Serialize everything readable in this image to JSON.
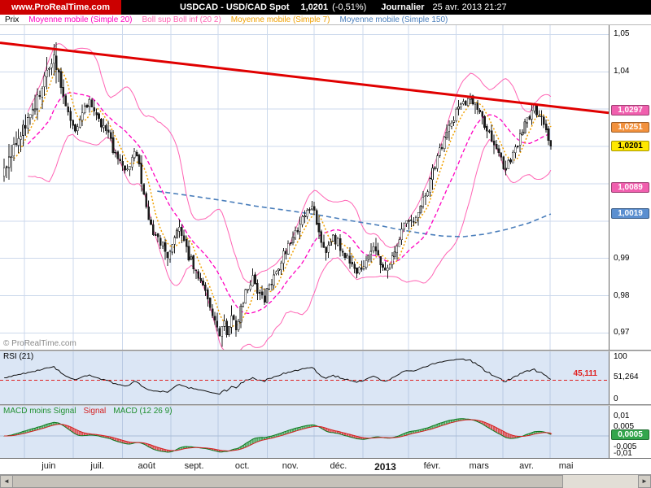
{
  "header": {
    "logo": "www.ProRealTime.com",
    "title": "USDCAD - USD/CAD Spot",
    "price": "1,0201",
    "change": "(-0,51%)",
    "timeframe": "Journalier",
    "datetime": "25 avr. 2013 21:27"
  },
  "legend": [
    {
      "label": "Prix",
      "color": "#000000"
    },
    {
      "label": "Moyenne mobile (Simple 20)",
      "color": "#ff00c0"
    },
    {
      "label": "Boll sup Boll inf (20 2)",
      "color": "#ff64b4"
    },
    {
      "label": "Moyenne mobile (Simple 7)",
      "color": "#f0a000"
    },
    {
      "label": "Moyenne mobile (Simple 150)",
      "color": "#4a7ebb"
    }
  ],
  "watermark": "© ProRealTime.com",
  "icons": {
    "scroll_left": "◄",
    "scroll_right": "►"
  },
  "price_axis": {
    "ticks": [
      {
        "label": "1,05",
        "v": 1.05
      },
      {
        "label": "1,04",
        "v": 1.04
      },
      {
        "label": "0,99",
        "v": 0.99
      },
      {
        "label": "0,98",
        "v": 0.98
      },
      {
        "label": "0,97",
        "v": 0.97
      }
    ],
    "boxes": [
      {
        "label": "1,0297",
        "v": 1.0297,
        "bg": "#f05fae",
        "fg": "#ffffff"
      },
      {
        "label": "1,0251",
        "v": 1.0251,
        "bg": "#f2913d",
        "fg": "#ffffff"
      },
      {
        "label": "1,0201",
        "v": 1.0201,
        "bg": "#ffe800",
        "fg": "#000000"
      },
      {
        "label": "1,0089",
        "v": 1.0089,
        "bg": "#f05fae",
        "fg": "#ffffff"
      },
      {
        "label": "1,0019",
        "v": 1.0019,
        "bg": "#5b8fd0",
        "fg": "#ffffff"
      }
    ]
  },
  "rsi_panel": {
    "label": "RSI (21)",
    "level": 45.111,
    "level_label": "45,111",
    "last": 51.264,
    "axis": [
      {
        "label": "100",
        "v": 100
      },
      {
        "label": "51,264",
        "v": 51.264
      },
      {
        "label": "0",
        "v": 0
      }
    ]
  },
  "macd_panel": {
    "legend": [
      {
        "label": "MACD moins Signal",
        "color": "#1f8f2f"
      },
      {
        "label": "Signal",
        "color": "#d42020"
      },
      {
        "label": "MACD (12 26 9)",
        "color": "#1f8f2f"
      }
    ],
    "axis": [
      {
        "label": "0,01",
        "v": 0.01
      },
      {
        "label": "0,005",
        "v": 0.005
      },
      {
        "label": "-0,005",
        "v": -0.005
      },
      {
        "label": "-0,01",
        "v": -0.01
      }
    ],
    "box": {
      "label": "0,0005",
      "v": 0.0005,
      "bg": "#33a64c",
      "fg": "#ffffff"
    }
  },
  "months": [
    {
      "label": "juin",
      "t": 0.08
    },
    {
      "label": "juil.",
      "t": 0.16
    },
    {
      "label": "août",
      "t": 0.241
    },
    {
      "label": "sept.",
      "t": 0.319
    },
    {
      "label": "oct.",
      "t": 0.398
    },
    {
      "label": "nov.",
      "t": 0.477
    },
    {
      "label": "déc.",
      "t": 0.556
    },
    {
      "label": "2013",
      "t": 0.633,
      "year": true
    },
    {
      "label": "févr.",
      "t": 0.71
    },
    {
      "label": "mars",
      "t": 0.787
    },
    {
      "label": "avr.",
      "t": 0.865
    },
    {
      "label": "mai",
      "t": 0.93
    }
  ],
  "chart_data": {
    "type": "candlestick",
    "symbol": "USDCAD",
    "period": "daily",
    "x_range": [
      "juin 2012",
      "mai 2013"
    ],
    "y_range": [
      0.9655,
      1.0525
    ],
    "candles": 232,
    "t_span": [
      0.007,
      0.905
    ],
    "last": 1.0201,
    "grid_prices": [
      0.97,
      0.98,
      0.99,
      1.0,
      1.01,
      1.02,
      1.03,
      1.04,
      1.05
    ],
    "grid_t": [
      0.04,
      0.12,
      0.201,
      0.281,
      0.358,
      0.439,
      0.516,
      0.596,
      0.671,
      0.749,
      0.826,
      0.904
    ],
    "close_anchors": [
      [
        0.0,
        1.014
      ],
      [
        0.018,
        1.02
      ],
      [
        0.04,
        1.026
      ],
      [
        0.062,
        1.033
      ],
      [
        0.08,
        1.0415
      ],
      [
        0.09,
        1.044
      ],
      [
        0.102,
        1.0375
      ],
      [
        0.115,
        1.03
      ],
      [
        0.128,
        1.0245
      ],
      [
        0.142,
        1.0275
      ],
      [
        0.155,
        1.033
      ],
      [
        0.168,
        1.0295
      ],
      [
        0.18,
        1.025
      ],
      [
        0.193,
        1.022
      ],
      [
        0.207,
        1.0165
      ],
      [
        0.22,
        1.013
      ],
      [
        0.231,
        1.0165
      ],
      [
        0.242,
        1.0185
      ],
      [
        0.252,
        1.01
      ],
      [
        0.263,
        1.0
      ],
      [
        0.274,
        0.996
      ],
      [
        0.287,
        0.9945
      ],
      [
        0.299,
        0.991
      ],
      [
        0.31,
        0.9955
      ],
      [
        0.321,
        0.9975
      ],
      [
        0.333,
        0.9925
      ],
      [
        0.345,
        0.988
      ],
      [
        0.357,
        0.9855
      ],
      [
        0.368,
        0.981
      ],
      [
        0.377,
        0.976
      ],
      [
        0.386,
        0.972
      ],
      [
        0.394,
        0.969
      ],
      [
        0.401,
        0.973
      ],
      [
        0.408,
        0.97
      ],
      [
        0.415,
        0.9745
      ],
      [
        0.424,
        0.971
      ],
      [
        0.433,
        0.976
      ],
      [
        0.444,
        0.982
      ],
      [
        0.454,
        0.9845
      ],
      [
        0.464,
        0.981
      ],
      [
        0.474,
        0.9785
      ],
      [
        0.484,
        0.982
      ],
      [
        0.495,
        0.986
      ],
      [
        0.507,
        0.9895
      ],
      [
        0.519,
        0.9935
      ],
      [
        0.531,
        0.996
      ],
      [
        0.543,
        1.0
      ],
      [
        0.552,
        1.003
      ],
      [
        0.561,
        1.004
      ],
      [
        0.571,
        1.0
      ],
      [
        0.581,
        0.995
      ],
      [
        0.591,
        0.992
      ],
      [
        0.601,
        0.996
      ],
      [
        0.611,
        0.994
      ],
      [
        0.622,
        0.991
      ],
      [
        0.633,
        0.988
      ],
      [
        0.644,
        0.9855
      ],
      [
        0.655,
        0.988
      ],
      [
        0.666,
        0.991
      ],
      [
        0.677,
        0.993
      ],
      [
        0.687,
        0.989
      ],
      [
        0.697,
        0.9865
      ],
      [
        0.707,
        0.9895
      ],
      [
        0.717,
        0.993
      ],
      [
        0.728,
        0.9975
      ],
      [
        0.738,
        1.0005
      ],
      [
        0.748,
        0.9985
      ],
      [
        0.758,
        1.002
      ],
      [
        0.768,
        1.006
      ],
      [
        0.778,
        1.0105
      ],
      [
        0.788,
        1.015
      ],
      [
        0.798,
        1.0195
      ],
      [
        0.808,
        1.023
      ],
      [
        0.818,
        1.026
      ],
      [
        0.828,
        1.0295
      ],
      [
        0.84,
        1.032
      ],
      [
        0.853,
        1.0325
      ],
      [
        0.865,
        1.03
      ],
      [
        0.877,
        1.026
      ],
      [
        0.888,
        1.0235
      ],
      [
        0.898,
        1.02
      ],
      [
        0.908,
        1.0165
      ],
      [
        0.918,
        1.014
      ],
      [
        0.928,
        1.0165
      ],
      [
        0.938,
        1.0195
      ],
      [
        0.948,
        1.024
      ],
      [
        0.958,
        1.028
      ],
      [
        0.97,
        1.03
      ],
      [
        0.98,
        1.028
      ],
      [
        0.99,
        1.024
      ],
      [
        1.0,
        1.0201
      ]
    ],
    "mm150_anchors": [
      [
        0.28,
        1.008
      ],
      [
        0.34,
        1.0068
      ],
      [
        0.4,
        1.0055
      ],
      [
        0.46,
        1.004
      ],
      [
        0.52,
        1.0028
      ],
      [
        0.58,
        1.0015
      ],
      [
        0.63,
        1.0002
      ],
      [
        0.68,
        0.999
      ],
      [
        0.72,
        0.9978
      ],
      [
        0.76,
        0.9968
      ],
      [
        0.8,
        0.996
      ],
      [
        0.84,
        0.9958
      ],
      [
        0.88,
        0.9965
      ],
      [
        0.92,
        0.9978
      ],
      [
        0.96,
        0.9995
      ],
      [
        1.0,
        1.0019
      ]
    ],
    "trendline": {
      "p0": 1.0478,
      "p1": 1.029,
      "color": "#e00000"
    },
    "indicators": {
      "mm7": 7,
      "mm20": 20,
      "bollinger": [
        20,
        2
      ],
      "mm150": 150,
      "rsi": 21,
      "macd": [
        12,
        26,
        9
      ]
    },
    "colors": {
      "grid": "#ccd9ec",
      "panel_grid": "#b9c9e2",
      "boll": "#ff64b4",
      "mm20": "#ff00c0",
      "mm7": "#f0a000",
      "mm150": "#4a7ebb",
      "candle": "#1b1b1b",
      "up_fill": "#ffffff",
      "down_fill": "#1b1b1b",
      "hist_pos": "#2e9e3f",
      "hist_neg": "#e03030",
      "rsi_line": "#111111",
      "rsi_level": "#e02020",
      "macd_line": "#0b7a1f",
      "signal_line": "#d42020",
      "zero_line": "#a8bcd8"
    }
  }
}
